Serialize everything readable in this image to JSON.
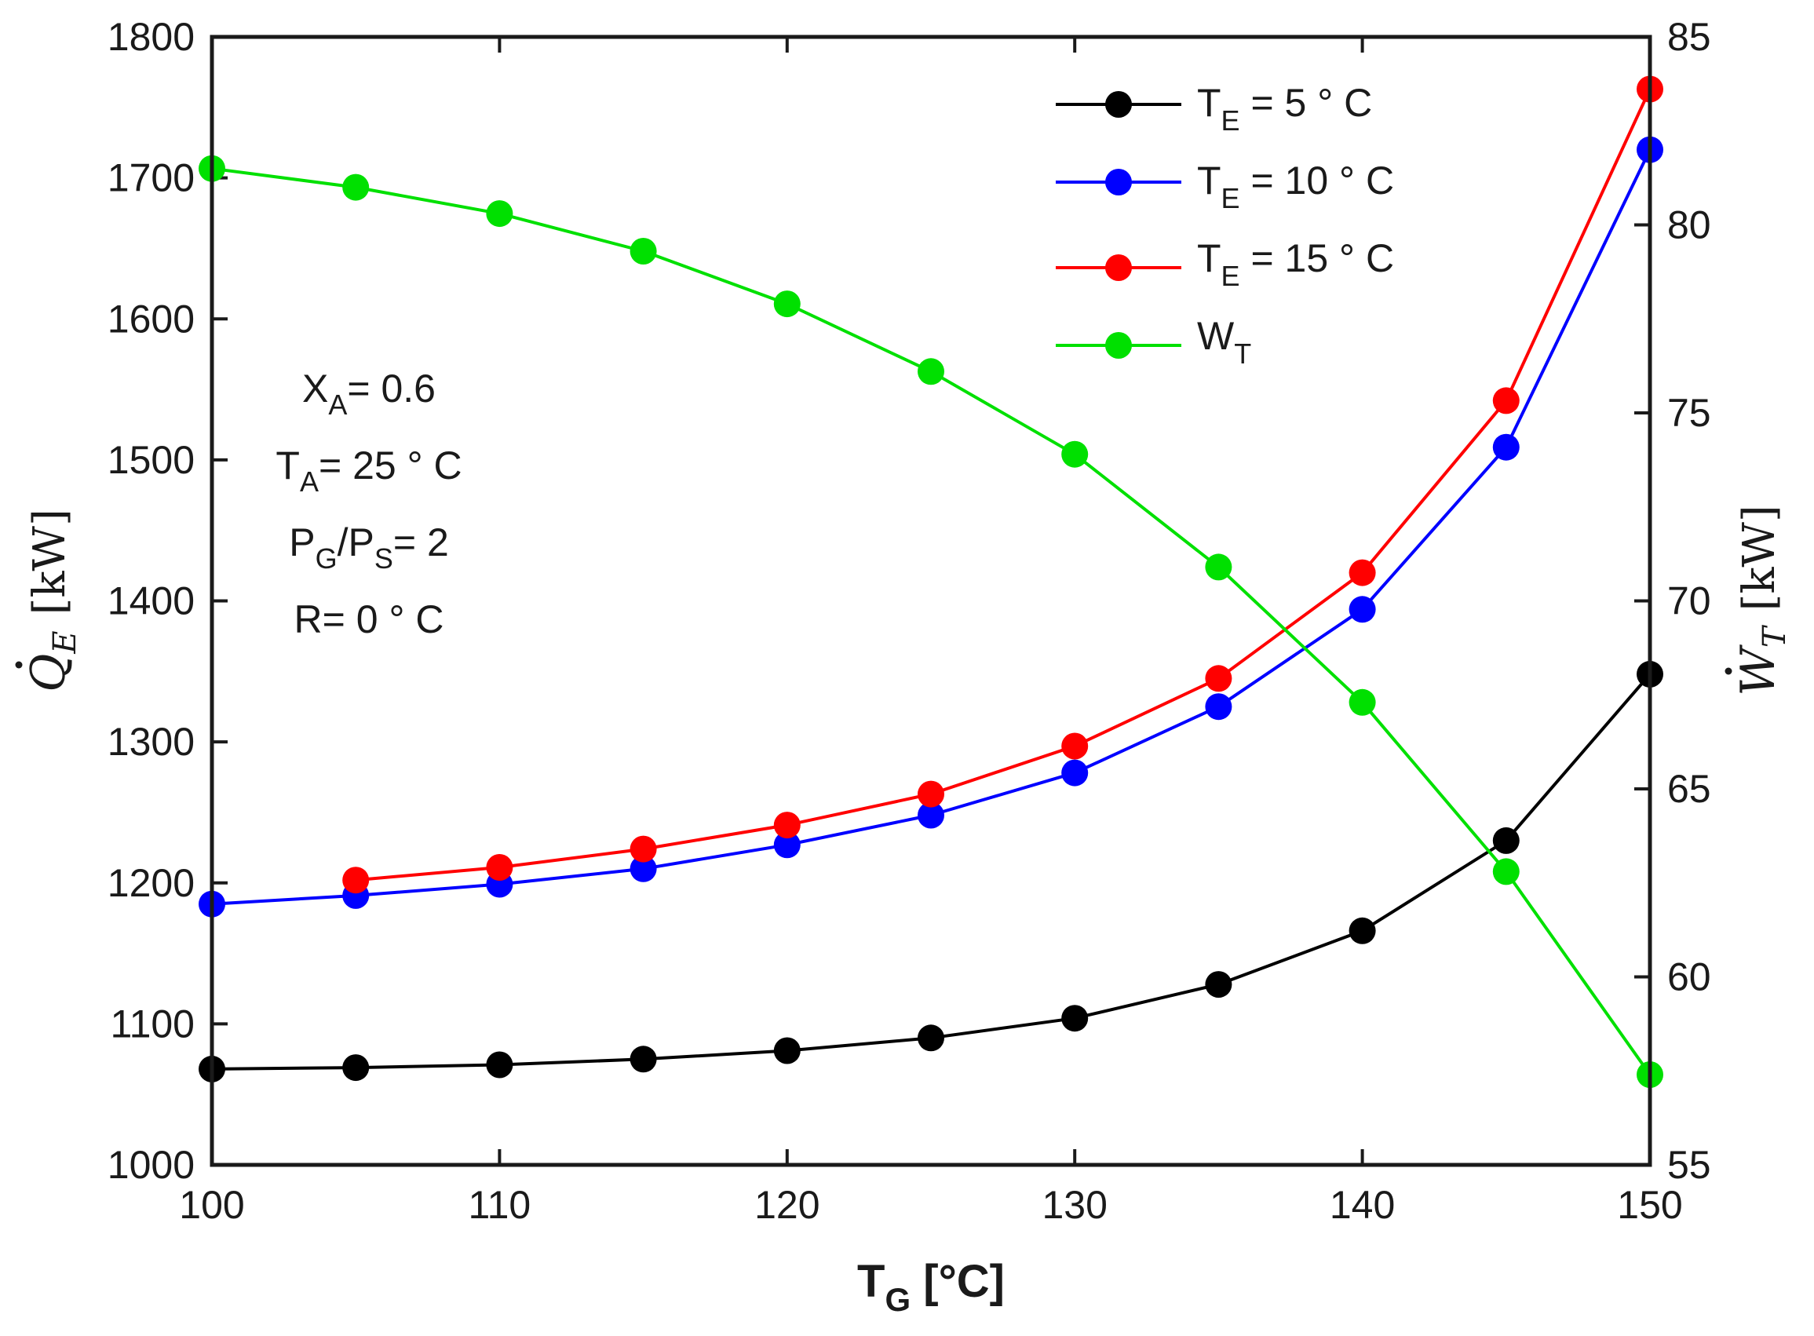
{
  "chart_data": {
    "type": "line",
    "x": [
      100,
      105,
      110,
      115,
      120,
      125,
      130,
      135,
      140,
      145,
      150
    ],
    "xlim": [
      100,
      150
    ],
    "xticks": [
      "100",
      "110",
      "120",
      "130",
      "140",
      "150"
    ],
    "ylim_left": [
      1000,
      1800
    ],
    "yticks_left": [
      "1000",
      "1100",
      "1200",
      "1300",
      "1400",
      "1500",
      "1600",
      "1700",
      "1800"
    ],
    "ylim_right": [
      55,
      85
    ],
    "yticks_right": [
      "55",
      "60",
      "65",
      "70",
      "75",
      "80",
      "85"
    ],
    "xlabel": {
      "main": "T",
      "sub": "G",
      "unit": " [°C]"
    },
    "ylabel_left": {
      "symbol": "Q",
      "sub": "E",
      "unit": "[kW]"
    },
    "ylabel_right": {
      "symbol": "W",
      "sub": "T",
      "unit": "[kW]"
    },
    "series": [
      {
        "name": "T_E = 5 ° C",
        "legend": {
          "main": "T",
          "sub": "E",
          "rest": " = 5 ° C"
        },
        "axis": "left",
        "color": "#000000",
        "values": [
          1068,
          1069,
          1071,
          1075,
          1081,
          1090,
          1104,
          1128,
          1166,
          1230,
          1348
        ]
      },
      {
        "name": "T_E = 10 ° C",
        "legend": {
          "main": "T",
          "sub": "E",
          "rest": " = 10 ° C"
        },
        "axis": "left",
        "color": "#0000ff",
        "values": [
          1185,
          1191,
          1199,
          1210,
          1227,
          1248,
          1278,
          1325,
          1394,
          1509,
          1720
        ]
      },
      {
        "name": "T_E = 15 ° C",
        "legend": {
          "main": "T",
          "sub": "E",
          "rest": " = 15 ° C"
        },
        "axis": "left",
        "color": "#ff0000",
        "values": [
          null,
          1202,
          1211,
          1224,
          1241,
          1263,
          1297,
          1345,
          1420,
          1542,
          1763
        ]
      },
      {
        "name": "W_T",
        "legend": {
          "main": "W",
          "sub": "T",
          "rest": ""
        },
        "axis": "right",
        "color": "#00e000",
        "values": [
          81.5,
          81.0,
          80.3,
          79.3,
          77.9,
          76.1,
          73.9,
          70.9,
          67.3,
          62.8,
          57.4
        ]
      }
    ],
    "annotations": [
      {
        "main": "X",
        "sub": "A",
        "rest": "= 0.6"
      },
      {
        "main": "T",
        "sub": "A",
        "rest": "= 25 ° C"
      },
      {
        "main": "P",
        "sub": "G",
        "rest": "/P",
        "sub2": "S",
        "rest2": "= 2"
      },
      {
        "main": "R= 0 ° C",
        "sub": "",
        "rest": ""
      }
    ],
    "legend_position": "top-right"
  }
}
